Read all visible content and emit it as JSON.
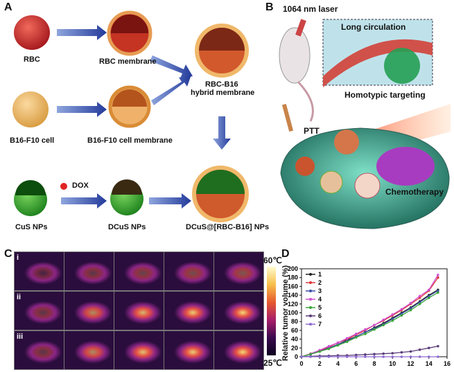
{
  "panels": {
    "a": "A",
    "b": "B",
    "c": "C",
    "d": "D"
  },
  "panelA": {
    "rbc": "RBC",
    "rbc_membrane": "RBC membrane",
    "hybrid_line1": "RBC-B16",
    "hybrid_line2": "hybrid membrane",
    "b16_cell": "B16-F10 cell",
    "b16_membrane": "B16-F10 cell membrane",
    "dox": "DOX",
    "cus": "CuS NPs",
    "dcus": "DCuS NPs",
    "final": "DCuS@[RBC-B16] NPs"
  },
  "panelB": {
    "laser": "1064 nm laser",
    "long_circ": "Long circulation",
    "homotypic": "Homotypic targeting",
    "ptt": "PTT",
    "chemo": "Chemotherapy"
  },
  "panelC": {
    "rows": [
      "i",
      "ii",
      "iii"
    ],
    "scale_max": "60℃",
    "scale_min": "25℃",
    "hotspot_intensity": [
      [
        0.1,
        0.2,
        0.25,
        0.3,
        0.35
      ],
      [
        0.2,
        0.6,
        0.8,
        0.9,
        0.95
      ],
      [
        0.2,
        0.6,
        0.85,
        0.9,
        0.95
      ]
    ]
  },
  "chart_data": {
    "type": "line",
    "ylabel": "Relative tumor volume (%)",
    "xlabel": "",
    "xlim": [
      0,
      16
    ],
    "ylim": [
      0,
      200
    ],
    "xticks": [
      0,
      2,
      4,
      6,
      8,
      10,
      12,
      14,
      16
    ],
    "yticks": [
      0,
      20,
      40,
      60,
      80,
      100,
      120,
      140,
      160,
      180,
      200
    ],
    "x": [
      0,
      1,
      2,
      3,
      4,
      5,
      6,
      7,
      8,
      9,
      10,
      11,
      12,
      13,
      14,
      15
    ],
    "legend_position": "top-left",
    "series": [
      {
        "name": "1",
        "color": "#222222",
        "values": [
          0,
          6,
          12,
          20,
          28,
          38,
          46,
          56,
          66,
          76,
          88,
          100,
          112,
          126,
          140,
          152
        ]
      },
      {
        "name": "2",
        "color": "#e0383a",
        "values": [
          0,
          7,
          14,
          22,
          32,
          40,
          50,
          60,
          72,
          82,
          94,
          106,
          120,
          134,
          150,
          180
        ]
      },
      {
        "name": "3",
        "color": "#3a4fa8",
        "values": [
          0,
          6,
          12,
          20,
          28,
          36,
          46,
          56,
          64,
          74,
          86,
          98,
          110,
          124,
          138,
          150
        ]
      },
      {
        "name": "4",
        "color": "#d14fd1",
        "values": [
          0,
          7,
          15,
          24,
          32,
          42,
          52,
          62,
          72,
          84,
          96,
          108,
          122,
          138,
          152,
          186
        ]
      },
      {
        "name": "5",
        "color": "#3aa53a",
        "values": [
          0,
          6,
          12,
          18,
          26,
          34,
          44,
          52,
          62,
          72,
          82,
          94,
          106,
          120,
          134,
          146
        ]
      },
      {
        "name": "6",
        "color": "#5a3c7a",
        "values": [
          0,
          1,
          2,
          2,
          3,
          3,
          4,
          5,
          6,
          7,
          8,
          10,
          12,
          16,
          20,
          24
        ]
      },
      {
        "name": "7",
        "color": "#8d6bd1",
        "values": [
          0,
          0,
          0,
          0,
          0,
          0,
          0,
          0,
          0,
          0,
          0,
          0,
          0,
          0,
          0,
          0
        ]
      }
    ]
  }
}
